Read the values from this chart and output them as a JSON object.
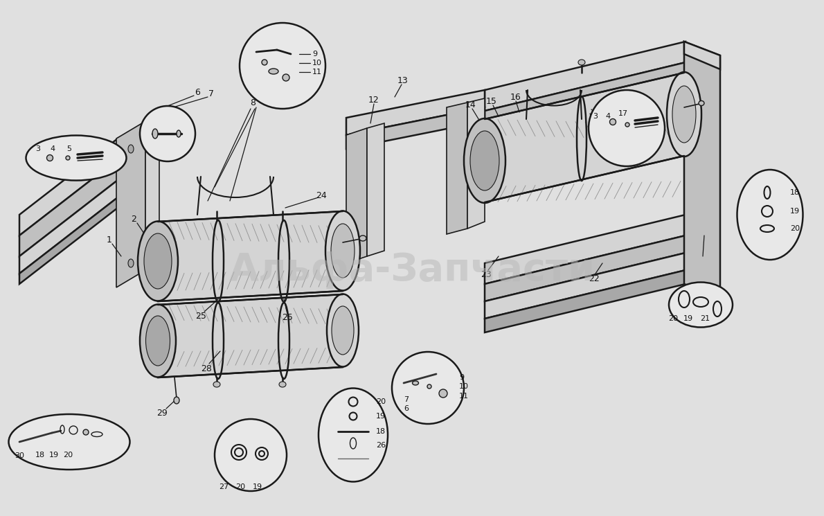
{
  "background_color": "#e0e0e0",
  "watermark_text": "Альфа-Запчасти",
  "watermark_color": "#b8b8b8",
  "watermark_alpha": 0.5,
  "line_color": "#1a1a1a",
  "line_width": 1.2,
  "thick_line": 1.8,
  "part_label_fontsize": 9,
  "part_label_color": "#111111",
  "fill_light": "#d4d4d4",
  "fill_mid": "#c0c0c0",
  "fill_dark": "#a8a8a8",
  "fill_white": "#e8e8e8"
}
